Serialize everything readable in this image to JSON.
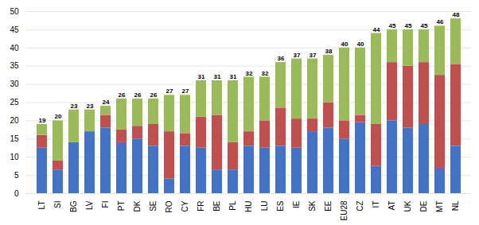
{
  "chart_data": {
    "type": "bar",
    "stacked": true,
    "grid": true,
    "categories": [
      "LT",
      "SI",
      "BG",
      "LV",
      "FI",
      "PT",
      "DK",
      "SE",
      "RO",
      "CY",
      "FR",
      "BE",
      "PL",
      "HU",
      "LU",
      "ES",
      "IE",
      "SK",
      "EE",
      "EU28",
      "CZ",
      "IT",
      "AT",
      "UK",
      "DE",
      "MT",
      "NL"
    ],
    "series": [
      {
        "color": "#4472C4",
        "values": [
          12.5,
          6.5,
          14.0,
          17.0,
          18.0,
          14.0,
          15.0,
          13.0,
          4.0,
          13.0,
          12.5,
          6.5,
          6.5,
          13.0,
          12.5,
          13.0,
          12.5,
          17.0,
          18.0,
          15.0,
          19.5,
          7.5,
          20.0,
          18.0,
          19.0,
          7.0,
          13.0
        ]
      },
      {
        "color": "#C0504D",
        "values": [
          3.5,
          2.5,
          0.0,
          0.0,
          3.5,
          3.5,
          3.5,
          6.0,
          13.0,
          3.5,
          8.5,
          15.0,
          7.5,
          4.0,
          7.5,
          10.5,
          8.0,
          3.5,
          7.0,
          5.0,
          2.0,
          11.5,
          16.0,
          17.0,
          17.0,
          25.5,
          22.5
        ]
      },
      {
        "color": "#9BBB59",
        "values": [
          3.0,
          11.0,
          9.0,
          6.0,
          2.5,
          8.5,
          7.5,
          7.0,
          10.0,
          10.5,
          10.0,
          9.5,
          17.0,
          15.0,
          12.0,
          12.5,
          16.5,
          16.5,
          13.0,
          20.0,
          18.5,
          25.0,
          9.0,
          10.0,
          9.0,
          13.5,
          12.5
        ]
      }
    ],
    "totals": [
      19,
      20,
      23,
      23,
      24,
      26,
      26,
      26,
      27,
      27,
      31,
      31,
      31,
      32,
      32,
      36,
      37,
      37,
      38,
      40,
      40,
      44,
      45,
      45,
      45,
      46,
      48
    ],
    "ylim": [
      0,
      50
    ],
    "yticks": [
      0,
      5,
      10,
      15,
      20,
      25,
      30,
      35,
      40,
      45,
      50
    ]
  }
}
